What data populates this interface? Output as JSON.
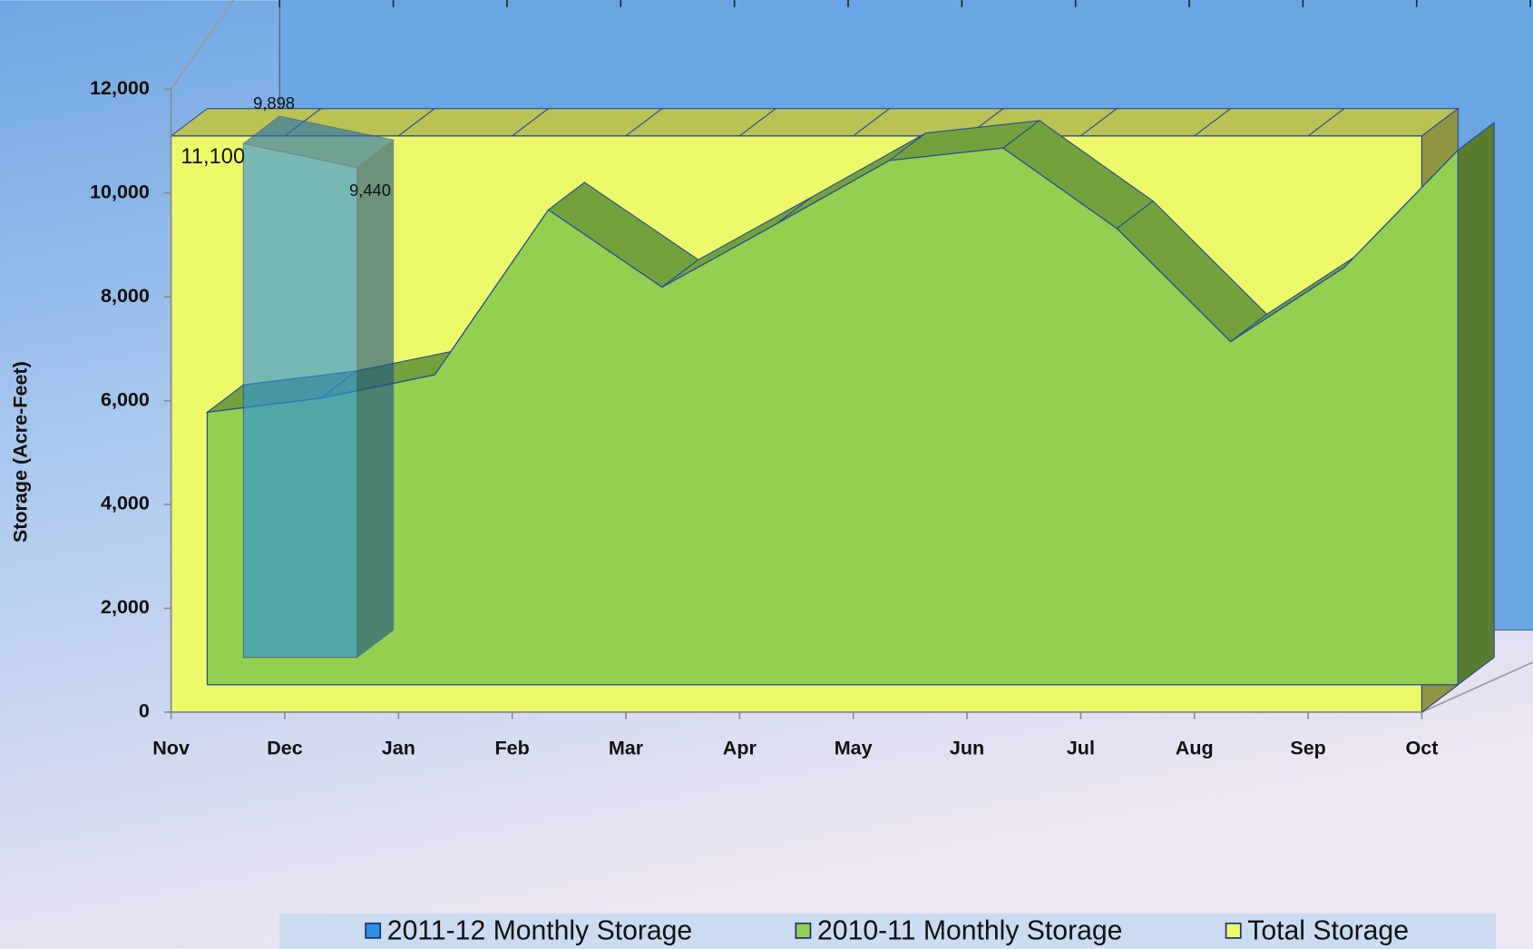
{
  "chart_data": {
    "type": "area3d",
    "y_axis_label": "Storage (Acre-Feet)",
    "categories": [
      "Nov",
      "Dec",
      "Jan",
      "Feb",
      "Mar",
      "Apr",
      "May",
      "Jun",
      "Jul",
      "Aug",
      "Sep",
      "Oct"
    ],
    "ylim": [
      0,
      12000
    ],
    "yticks": [
      0,
      {
        "value": 2000,
        "label": "2,000"
      },
      {
        "value": 4000,
        "label": "4,000"
      },
      {
        "value": 6000,
        "label": "6,000"
      },
      {
        "value": 8000,
        "label": "8,000"
      },
      {
        "value": 10000,
        "label": "10,000"
      },
      {
        "value": 12000,
        "label": "12,000"
      }
    ],
    "series": [
      {
        "name": "2011-12 Monthly Storage",
        "color": "#2f8fe0",
        "values": [
          9898,
          9440,
          null,
          null,
          null,
          null,
          null,
          null,
          null,
          null,
          null,
          null
        ],
        "value_labels": [
          "9,898",
          "9,440",
          null,
          null,
          null,
          null,
          null,
          null,
          null,
          null,
          null,
          null
        ]
      },
      {
        "name": "2010-11 Monthly Storage",
        "color": "#92d050",
        "values": [
          5250,
          5520,
          5970,
          9150,
          7660,
          8870,
          10100,
          10340,
          8790,
          6610,
          8040,
          10300
        ]
      },
      {
        "name": "Total Storage",
        "color": "#eef96a",
        "values": [
          11100,
          11100,
          11100,
          11100,
          11100,
          11100,
          11100,
          11100,
          11100,
          11100,
          11100,
          11100
        ],
        "value_labels": [
          "11,100",
          null,
          null,
          null,
          null,
          null,
          null,
          null,
          null,
          null,
          null,
          null
        ]
      }
    ]
  }
}
